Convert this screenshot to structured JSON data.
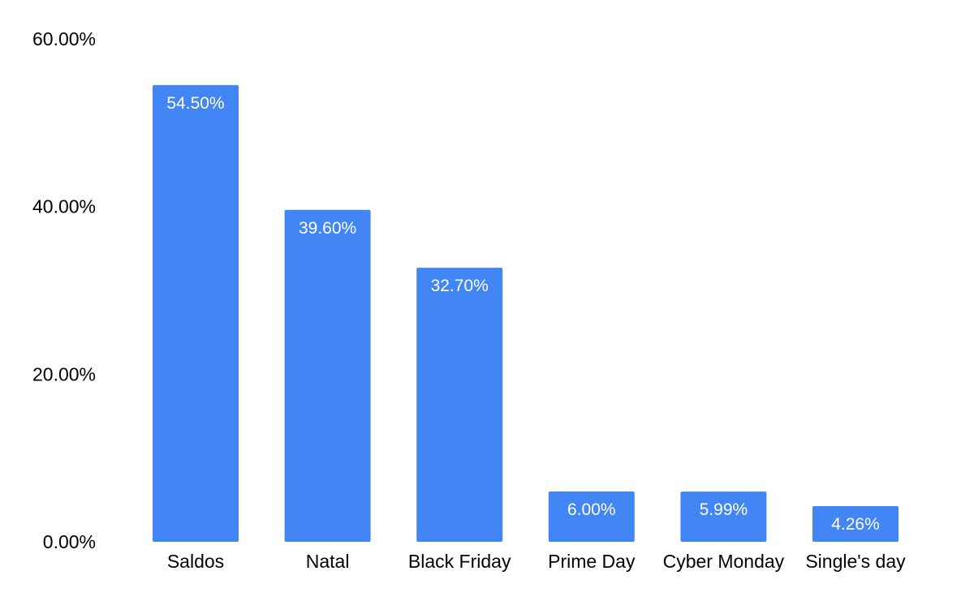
{
  "chart_data": {
    "type": "bar",
    "title": "",
    "xlabel": "",
    "ylabel": "",
    "categories": [
      "Saldos",
      "Natal",
      "Black Friday",
      "Prime Day",
      "Cyber Monday",
      "Single's day"
    ],
    "values": [
      54.5,
      39.6,
      32.7,
      6.0,
      5.99,
      4.26
    ],
    "data_labels": [
      "54.50%",
      "39.60%",
      "32.70%",
      "6.00%",
      "5.99%",
      "4.26%"
    ],
    "ylim": [
      0,
      60
    ],
    "y_ticks": [
      0,
      20,
      40,
      60
    ],
    "y_tick_labels": [
      "0.00%",
      "20.00%",
      "40.00%",
      "60.00%"
    ],
    "grid": false,
    "legend": "none",
    "bar_color": "#4285F4",
    "label_color": "#FFFFFF"
  }
}
